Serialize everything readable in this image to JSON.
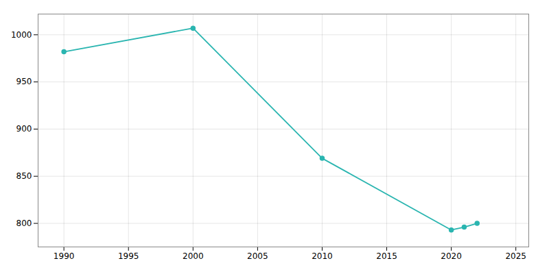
{
  "chart_data": {
    "type": "line",
    "x": [
      1990,
      2000,
      2010,
      2020,
      2021,
      2022
    ],
    "values": [
      982,
      1007,
      869,
      793,
      796,
      800
    ],
    "color": "#2ab5b0",
    "marker": "circle",
    "xlim": [
      1988,
      2026
    ],
    "ylim": [
      775,
      1022
    ],
    "xticks": [
      1990,
      1995,
      2000,
      2005,
      2010,
      2015,
      2020,
      2025
    ],
    "yticks": [
      800,
      850,
      900,
      950,
      1000
    ],
    "grid": true
  }
}
